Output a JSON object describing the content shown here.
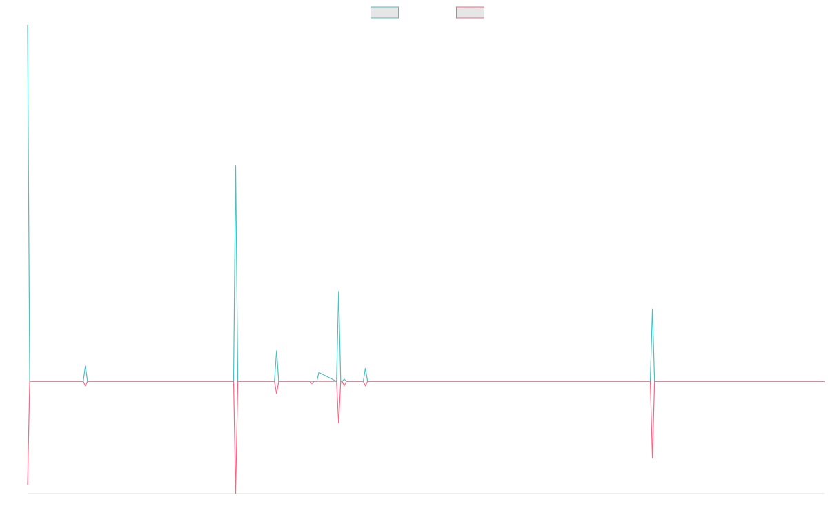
{
  "chart_data": {
    "type": "line",
    "title": "",
    "xlabel": "",
    "ylabel": "",
    "grid": false,
    "legend_position": "top-center",
    "xlim": [
      0,
      1130
    ],
    "ylim": [
      -255,
      810
    ],
    "series": [
      {
        "color": "#4bc0c0",
        "legend_fill": "#e6e6e6",
        "x": [
          0,
          3,
          79,
          82,
          85,
          292,
          295,
          298,
          350,
          353,
          356,
          400,
          403,
          406,
          410,
          413,
          438,
          441,
          444,
          446,
          449,
          452,
          476,
          479,
          482,
          1130
        ],
        "y": [
          810,
          0,
          0,
          35,
          0,
          0,
          490,
          0,
          0,
          70,
          0,
          0,
          0,
          0,
          0,
          20,
          0,
          205,
          0,
          0,
          5,
          0,
          0,
          30,
          0,
          0
        ]
      },
      {
        "color": "#ff6384",
        "legend_fill": "#e6e6e6",
        "x": [
          0,
          3,
          79,
          82,
          85,
          292,
          295,
          298,
          350,
          353,
          356,
          400,
          403,
          406,
          410,
          413,
          438,
          441,
          444,
          446,
          449,
          452,
          476,
          479,
          482,
          1130
        ],
        "y": [
          -235,
          0,
          0,
          -10,
          0,
          0,
          -255,
          0,
          0,
          -28,
          0,
          0,
          -5,
          0,
          0,
          0,
          0,
          -95,
          0,
          0,
          -10,
          0,
          0,
          -10,
          0,
          0
        ]
      }
    ],
    "extra_spike": {
      "x": [
        883,
        886,
        889
      ],
      "y_series_1": [
        0,
        165,
        0
      ],
      "y_series_2": [
        0,
        -175,
        0
      ]
    }
  }
}
